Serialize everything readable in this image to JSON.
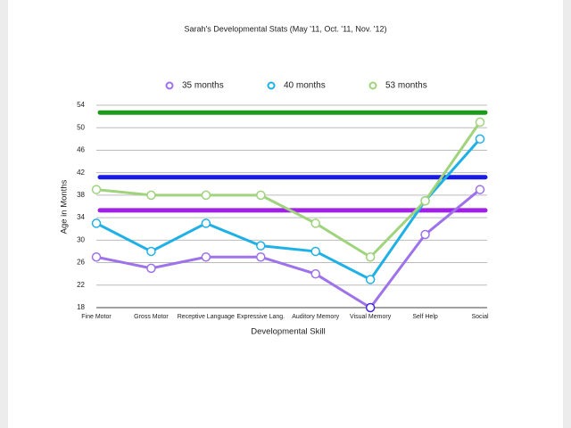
{
  "chart_data": {
    "type": "line",
    "title": "Sarah's Developmental Stats (May '11, Oct. '11, Nov. '12)",
    "x_label": "Developmental Skill",
    "y_label": "Age in Months",
    "categories": [
      "Fine Motor",
      "Gross Motor",
      "Receptive Language",
      "Expressive Lang.",
      "Auditory Memory",
      "Visual Memory",
      "Self Help",
      "Social"
    ],
    "series": [
      {
        "name": "35 months",
        "color": "#9d72ea",
        "values": [
          27,
          25,
          27,
          27,
          24,
          18,
          31,
          39
        ]
      },
      {
        "name": "40 months",
        "color": "#1fb0e6",
        "values": [
          33,
          28,
          33,
          29,
          28,
          23,
          37,
          48
        ]
      },
      {
        "name": "53 months",
        "color": "#9fd37c",
        "values": [
          39,
          38,
          38,
          38,
          33,
          27,
          37,
          51
        ]
      }
    ],
    "reference_lines": [
      {
        "value": 52.7,
        "color": "#1c9a1c"
      },
      {
        "value": 41.2,
        "color": "#1a1ae6"
      },
      {
        "value": 35.3,
        "color": "#a21fe6"
      }
    ],
    "ylim": [
      18,
      54
    ],
    "yticks": [
      18,
      22,
      26,
      30,
      34,
      38,
      42,
      46,
      50,
      54
    ],
    "grid": true,
    "legend": "top"
  }
}
